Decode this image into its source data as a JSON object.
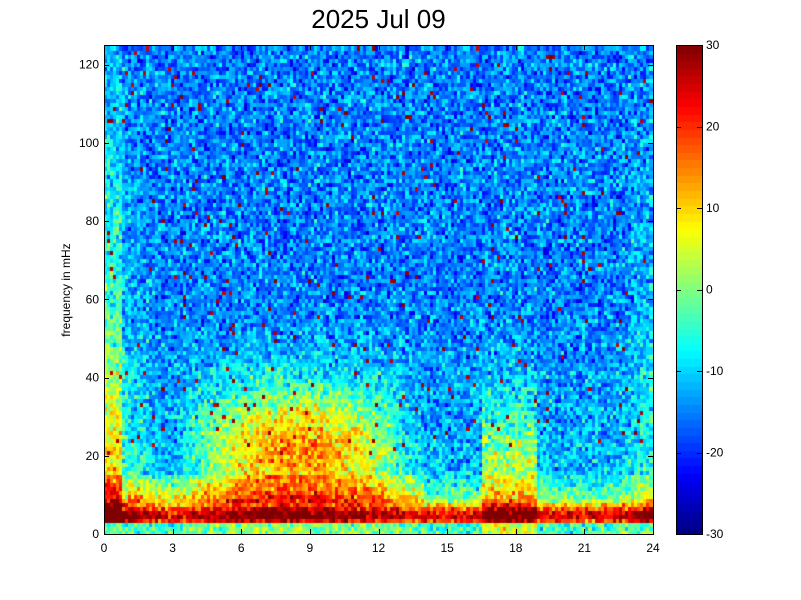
{
  "chart_data": {
    "type": "heatmap",
    "title": "2025 Jul 09",
    "ylabel": "frequency in mHz",
    "xlabel": "",
    "xlim": [
      0,
      24
    ],
    "ylim": [
      0,
      125
    ],
    "x_ticks": [
      0,
      3,
      6,
      9,
      12,
      15,
      18,
      21,
      24
    ],
    "y_ticks": [
      0,
      20,
      40,
      60,
      80,
      100,
      120
    ],
    "colorbar": {
      "range": [
        -30,
        30
      ],
      "ticks": [
        30,
        20,
        10,
        0,
        -10,
        -20,
        -30
      ],
      "colormap": "jet"
    },
    "description_of_values": {
      "background_level": -15,
      "low_frequency_band_mHz": [
        0,
        8
      ],
      "low_frequency_band_level": 25,
      "enhanced_region_hours": [
        3,
        14
      ],
      "enhanced_region_mHz": [
        10,
        40
      ],
      "enhanced_region_level": 12
    }
  }
}
